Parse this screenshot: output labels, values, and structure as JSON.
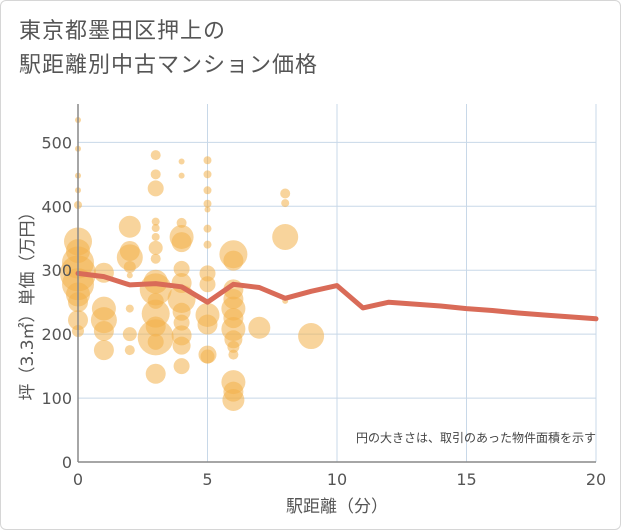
{
  "chart_data": {
    "type": "scatter",
    "title_lines": [
      "東京都墨田区押上の",
      "駅距離別中古マンション価格"
    ],
    "xlabel": "駅距離（分）",
    "ylabel": "坪（3.3㎡）単価（万円）",
    "note": "円の大きさは、取引のあった物件面積を示す",
    "xlim": [
      0,
      20
    ],
    "ylim": [
      0,
      560
    ],
    "xticks": [
      0,
      5,
      10,
      15,
      20
    ],
    "yticks": [
      0,
      100,
      200,
      300,
      400,
      500
    ],
    "grid": true,
    "colors": {
      "bubble": "#f3b04a",
      "line": "#d96b58",
      "grid": "#c8d8e8",
      "axis": "#888888"
    },
    "bubbles": [
      {
        "x": 0,
        "y": 535,
        "size": 3
      },
      {
        "x": 0,
        "y": 490,
        "size": 3
      },
      {
        "x": 0,
        "y": 448,
        "size": 3
      },
      {
        "x": 0,
        "y": 425,
        "size": 3
      },
      {
        "x": 0,
        "y": 402,
        "size": 4
      },
      {
        "x": 0,
        "y": 345,
        "size": 14
      },
      {
        "x": 0,
        "y": 330,
        "size": 12
      },
      {
        "x": 0,
        "y": 312,
        "size": 16
      },
      {
        "x": 0,
        "y": 295,
        "size": 18
      },
      {
        "x": 0,
        "y": 278,
        "size": 16
      },
      {
        "x": 0,
        "y": 262,
        "size": 12
      },
      {
        "x": 0,
        "y": 250,
        "size": 10
      },
      {
        "x": 0,
        "y": 222,
        "size": 10
      },
      {
        "x": 0,
        "y": 205,
        "size": 6
      },
      {
        "x": 1,
        "y": 296,
        "size": 10
      },
      {
        "x": 1,
        "y": 240,
        "size": 12
      },
      {
        "x": 1,
        "y": 222,
        "size": 13
      },
      {
        "x": 1,
        "y": 205,
        "size": 10
      },
      {
        "x": 1,
        "y": 175,
        "size": 10
      },
      {
        "x": 2,
        "y": 368,
        "size": 11
      },
      {
        "x": 2,
        "y": 330,
        "size": 10
      },
      {
        "x": 2,
        "y": 320,
        "size": 13
      },
      {
        "x": 2,
        "y": 305,
        "size": 6
      },
      {
        "x": 2,
        "y": 292,
        "size": 3
      },
      {
        "x": 2,
        "y": 240,
        "size": 4
      },
      {
        "x": 2,
        "y": 200,
        "size": 7
      },
      {
        "x": 2,
        "y": 175,
        "size": 5
      },
      {
        "x": 3,
        "y": 480,
        "size": 5
      },
      {
        "x": 3,
        "y": 450,
        "size": 5
      },
      {
        "x": 3,
        "y": 428,
        "size": 8
      },
      {
        "x": 3,
        "y": 376,
        "size": 4
      },
      {
        "x": 3,
        "y": 366,
        "size": 4
      },
      {
        "x": 3,
        "y": 352,
        "size": 4
      },
      {
        "x": 3,
        "y": 335,
        "size": 7
      },
      {
        "x": 3,
        "y": 318,
        "size": 5
      },
      {
        "x": 3,
        "y": 282,
        "size": 12
      },
      {
        "x": 3,
        "y": 270,
        "size": 16
      },
      {
        "x": 3,
        "y": 252,
        "size": 8
      },
      {
        "x": 3,
        "y": 232,
        "size": 14
      },
      {
        "x": 3,
        "y": 212,
        "size": 10
      },
      {
        "x": 3,
        "y": 195,
        "size": 18
      },
      {
        "x": 3,
        "y": 188,
        "size": 8
      },
      {
        "x": 3,
        "y": 138,
        "size": 10
      },
      {
        "x": 4,
        "y": 470,
        "size": 3
      },
      {
        "x": 4,
        "y": 448,
        "size": 3
      },
      {
        "x": 4,
        "y": 374,
        "size": 5
      },
      {
        "x": 4,
        "y": 352,
        "size": 12
      },
      {
        "x": 4,
        "y": 344,
        "size": 10
      },
      {
        "x": 4,
        "y": 302,
        "size": 8
      },
      {
        "x": 4,
        "y": 280,
        "size": 10
      },
      {
        "x": 4,
        "y": 255,
        "size": 14
      },
      {
        "x": 4,
        "y": 235,
        "size": 9
      },
      {
        "x": 4,
        "y": 218,
        "size": 8
      },
      {
        "x": 4,
        "y": 198,
        "size": 10
      },
      {
        "x": 4,
        "y": 182,
        "size": 9
      },
      {
        "x": 4,
        "y": 150,
        "size": 8
      },
      {
        "x": 5,
        "y": 472,
        "size": 4
      },
      {
        "x": 5,
        "y": 450,
        "size": 4
      },
      {
        "x": 5,
        "y": 425,
        "size": 4
      },
      {
        "x": 5,
        "y": 404,
        "size": 4
      },
      {
        "x": 5,
        "y": 395,
        "size": 3
      },
      {
        "x": 5,
        "y": 365,
        "size": 4
      },
      {
        "x": 5,
        "y": 340,
        "size": 4
      },
      {
        "x": 5,
        "y": 295,
        "size": 8
      },
      {
        "x": 5,
        "y": 278,
        "size": 8
      },
      {
        "x": 5,
        "y": 230,
        "size": 12
      },
      {
        "x": 5,
        "y": 215,
        "size": 10
      },
      {
        "x": 5,
        "y": 168,
        "size": 9
      },
      {
        "x": 5,
        "y": 165,
        "size": 7
      },
      {
        "x": 6,
        "y": 325,
        "size": 14
      },
      {
        "x": 6,
        "y": 315,
        "size": 10
      },
      {
        "x": 6,
        "y": 270,
        "size": 10
      },
      {
        "x": 6,
        "y": 255,
        "size": 10
      },
      {
        "x": 6,
        "y": 240,
        "size": 12
      },
      {
        "x": 6,
        "y": 225,
        "size": 10
      },
      {
        "x": 6,
        "y": 208,
        "size": 12
      },
      {
        "x": 6,
        "y": 192,
        "size": 9
      },
      {
        "x": 6,
        "y": 180,
        "size": 6
      },
      {
        "x": 6,
        "y": 168,
        "size": 5
      },
      {
        "x": 6,
        "y": 125,
        "size": 12
      },
      {
        "x": 6,
        "y": 110,
        "size": 10
      },
      {
        "x": 6,
        "y": 97,
        "size": 11
      },
      {
        "x": 7,
        "y": 210,
        "size": 11
      },
      {
        "x": 8,
        "y": 420,
        "size": 5
      },
      {
        "x": 8,
        "y": 405,
        "size": 4
      },
      {
        "x": 8,
        "y": 352,
        "size": 13
      },
      {
        "x": 8,
        "y": 252,
        "size": 3
      },
      {
        "x": 9,
        "y": 197,
        "size": 13
      }
    ],
    "line": {
      "x": [
        0,
        1,
        2,
        3,
        4,
        5,
        6,
        7,
        8,
        9,
        10,
        11,
        12,
        13,
        14,
        15,
        16,
        17,
        18,
        19,
        20
      ],
      "y": [
        295,
        290,
        277,
        279,
        274,
        250,
        278,
        273,
        256,
        267,
        276,
        241,
        250,
        247,
        244,
        240,
        237,
        233,
        230,
        227,
        224
      ]
    }
  }
}
